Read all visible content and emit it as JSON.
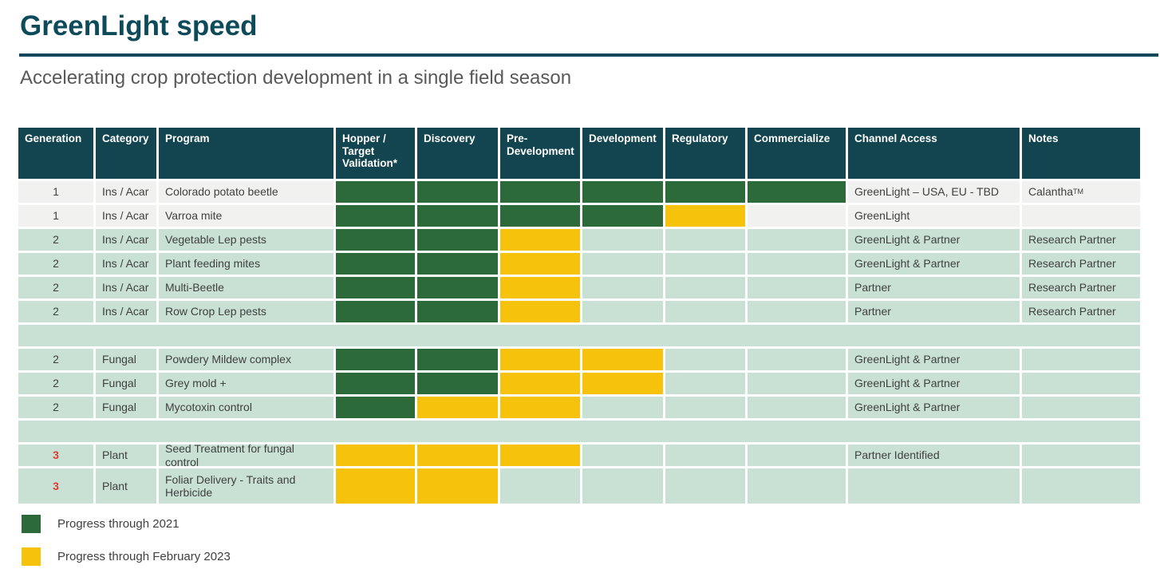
{
  "slide": {
    "title": "GreenLight speed",
    "subtitle": "Accelerating crop protection development in a single field season"
  },
  "colors": {
    "title_teal": "#0D4A5A",
    "rule_teal": "#15485A",
    "header_teal": "#12454F",
    "progress_2021_green": "#2D6A39",
    "progress_2023_yellow": "#F6C20C",
    "row_bg_gray": "#F1F1F0",
    "row_bg_green": "#C9E1D4",
    "generation3_red": "#E03C31",
    "body_text": "#404040",
    "subtitle_gray": "#595959"
  },
  "table": {
    "columns": [
      "Generation",
      "Category",
      "Program",
      "Hopper / Target Validation*",
      "Discovery",
      "Pre-Development",
      "Development",
      "Regulatory",
      "Commercialize",
      "Channel Access",
      "Notes"
    ],
    "phase_columns": [
      "hopper-target-validation",
      "discovery",
      "pre-development",
      "development",
      "regulatory",
      "commercialize"
    ],
    "rows": [
      {
        "type": "data",
        "generation": "1",
        "gen_red": false,
        "category": "Ins / Acar",
        "program": "Colorado potato beetle",
        "phases": [
          "green",
          "green",
          "green",
          "green",
          "green",
          "green"
        ],
        "channel_access": "GreenLight – USA, EU - TBD",
        "notes": "Calantha",
        "notes_sup": "TM",
        "row_bg": "gray"
      },
      {
        "type": "data",
        "generation": "1",
        "gen_red": false,
        "category": "Ins / Acar",
        "program": "Varroa mite",
        "phases": [
          "green",
          "green",
          "green",
          "green",
          "yellow",
          "none"
        ],
        "channel_access": "GreenLight",
        "notes": "",
        "row_bg": "gray"
      },
      {
        "type": "data",
        "generation": "2",
        "gen_red": false,
        "category": "Ins / Acar",
        "program": "Vegetable Lep pests",
        "phases": [
          "green",
          "green",
          "yellow",
          "none",
          "none",
          "none"
        ],
        "channel_access": "GreenLight & Partner",
        "notes": "Research Partner",
        "row_bg": "green"
      },
      {
        "type": "data",
        "generation": "2",
        "gen_red": false,
        "category": "Ins / Acar",
        "program": "Plant feeding mites",
        "phases": [
          "green",
          "green",
          "yellow",
          "none",
          "none",
          "none"
        ],
        "channel_access": "GreenLight & Partner",
        "notes": "Research Partner",
        "row_bg": "green"
      },
      {
        "type": "data",
        "generation": "2",
        "gen_red": false,
        "category": "Ins / Acar",
        "program": "Multi-Beetle",
        "phases": [
          "green",
          "green",
          "yellow",
          "none",
          "none",
          "none"
        ],
        "channel_access": "Partner",
        "notes": "Research Partner",
        "row_bg": "green"
      },
      {
        "type": "data",
        "generation": "2",
        "gen_red": false,
        "category": "Ins / Acar",
        "program": "Row Crop Lep pests",
        "phases": [
          "green",
          "green",
          "yellow",
          "none",
          "none",
          "none"
        ],
        "channel_access": "Partner",
        "notes": "Research Partner",
        "row_bg": "green"
      },
      {
        "type": "spacer"
      },
      {
        "type": "data",
        "generation": "2",
        "gen_red": false,
        "category": "Fungal",
        "program": "Powdery Mildew complex",
        "phases": [
          "green",
          "green",
          "yellow",
          "yellow",
          "none",
          "none"
        ],
        "channel_access": "GreenLight & Partner",
        "notes": "",
        "row_bg": "green"
      },
      {
        "type": "data",
        "generation": "2",
        "gen_red": false,
        "category": "Fungal",
        "program": "Grey mold +",
        "phases": [
          "green",
          "green",
          "yellow",
          "yellow",
          "none",
          "none"
        ],
        "channel_access": "GreenLight & Partner",
        "notes": "",
        "row_bg": "green"
      },
      {
        "type": "data",
        "generation": "2",
        "gen_red": false,
        "category": "Fungal",
        "program": "Mycotoxin control",
        "phases": [
          "green",
          "yellow",
          "yellow",
          "none",
          "none",
          "none"
        ],
        "channel_access": "GreenLight & Partner",
        "notes": "",
        "row_bg": "green"
      },
      {
        "type": "spacer"
      },
      {
        "type": "data",
        "generation": "3",
        "gen_red": true,
        "category": "Plant",
        "program": "Seed Treatment for fungal control",
        "phases": [
          "yellow",
          "yellow",
          "yellow",
          "none",
          "none",
          "none"
        ],
        "channel_access": "Partner Identified",
        "notes": "",
        "row_bg": "green"
      },
      {
        "type": "data",
        "generation": "3",
        "gen_red": true,
        "category": "Plant",
        "program": "Foliar Delivery - Traits and Herbicide",
        "phases": [
          "yellow",
          "yellow",
          "none",
          "none",
          "none",
          "none"
        ],
        "channel_access": "",
        "notes": "",
        "row_bg": "green"
      }
    ]
  },
  "legend": {
    "items": [
      {
        "swatch": "green",
        "label": "Progress through 2021"
      },
      {
        "swatch": "yellow",
        "label": "Progress through February 2023"
      }
    ]
  }
}
